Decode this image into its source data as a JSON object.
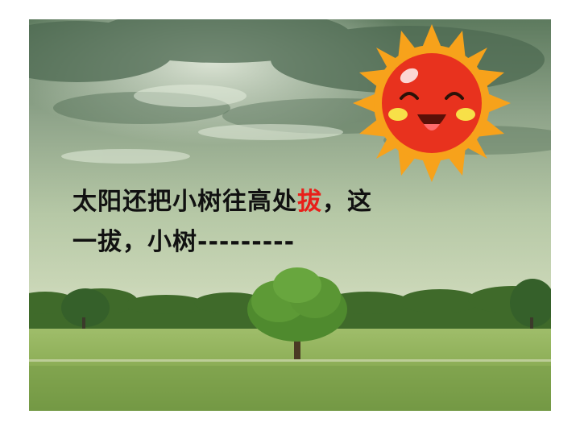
{
  "caption": {
    "line1_before": "太阳还把小树往高处",
    "line1_highlight": "拔",
    "line1_after": "，这",
    "line2": "一拔，小树---------"
  },
  "colors": {
    "text": "#111111",
    "highlight": "#e8201a",
    "sun_face": "#e8321e",
    "sun_rays": "#f7a21b",
    "cheeks": "#f7e048"
  },
  "icons": {
    "sun": "smiling-sun-icon",
    "tree": "tree-icon"
  }
}
